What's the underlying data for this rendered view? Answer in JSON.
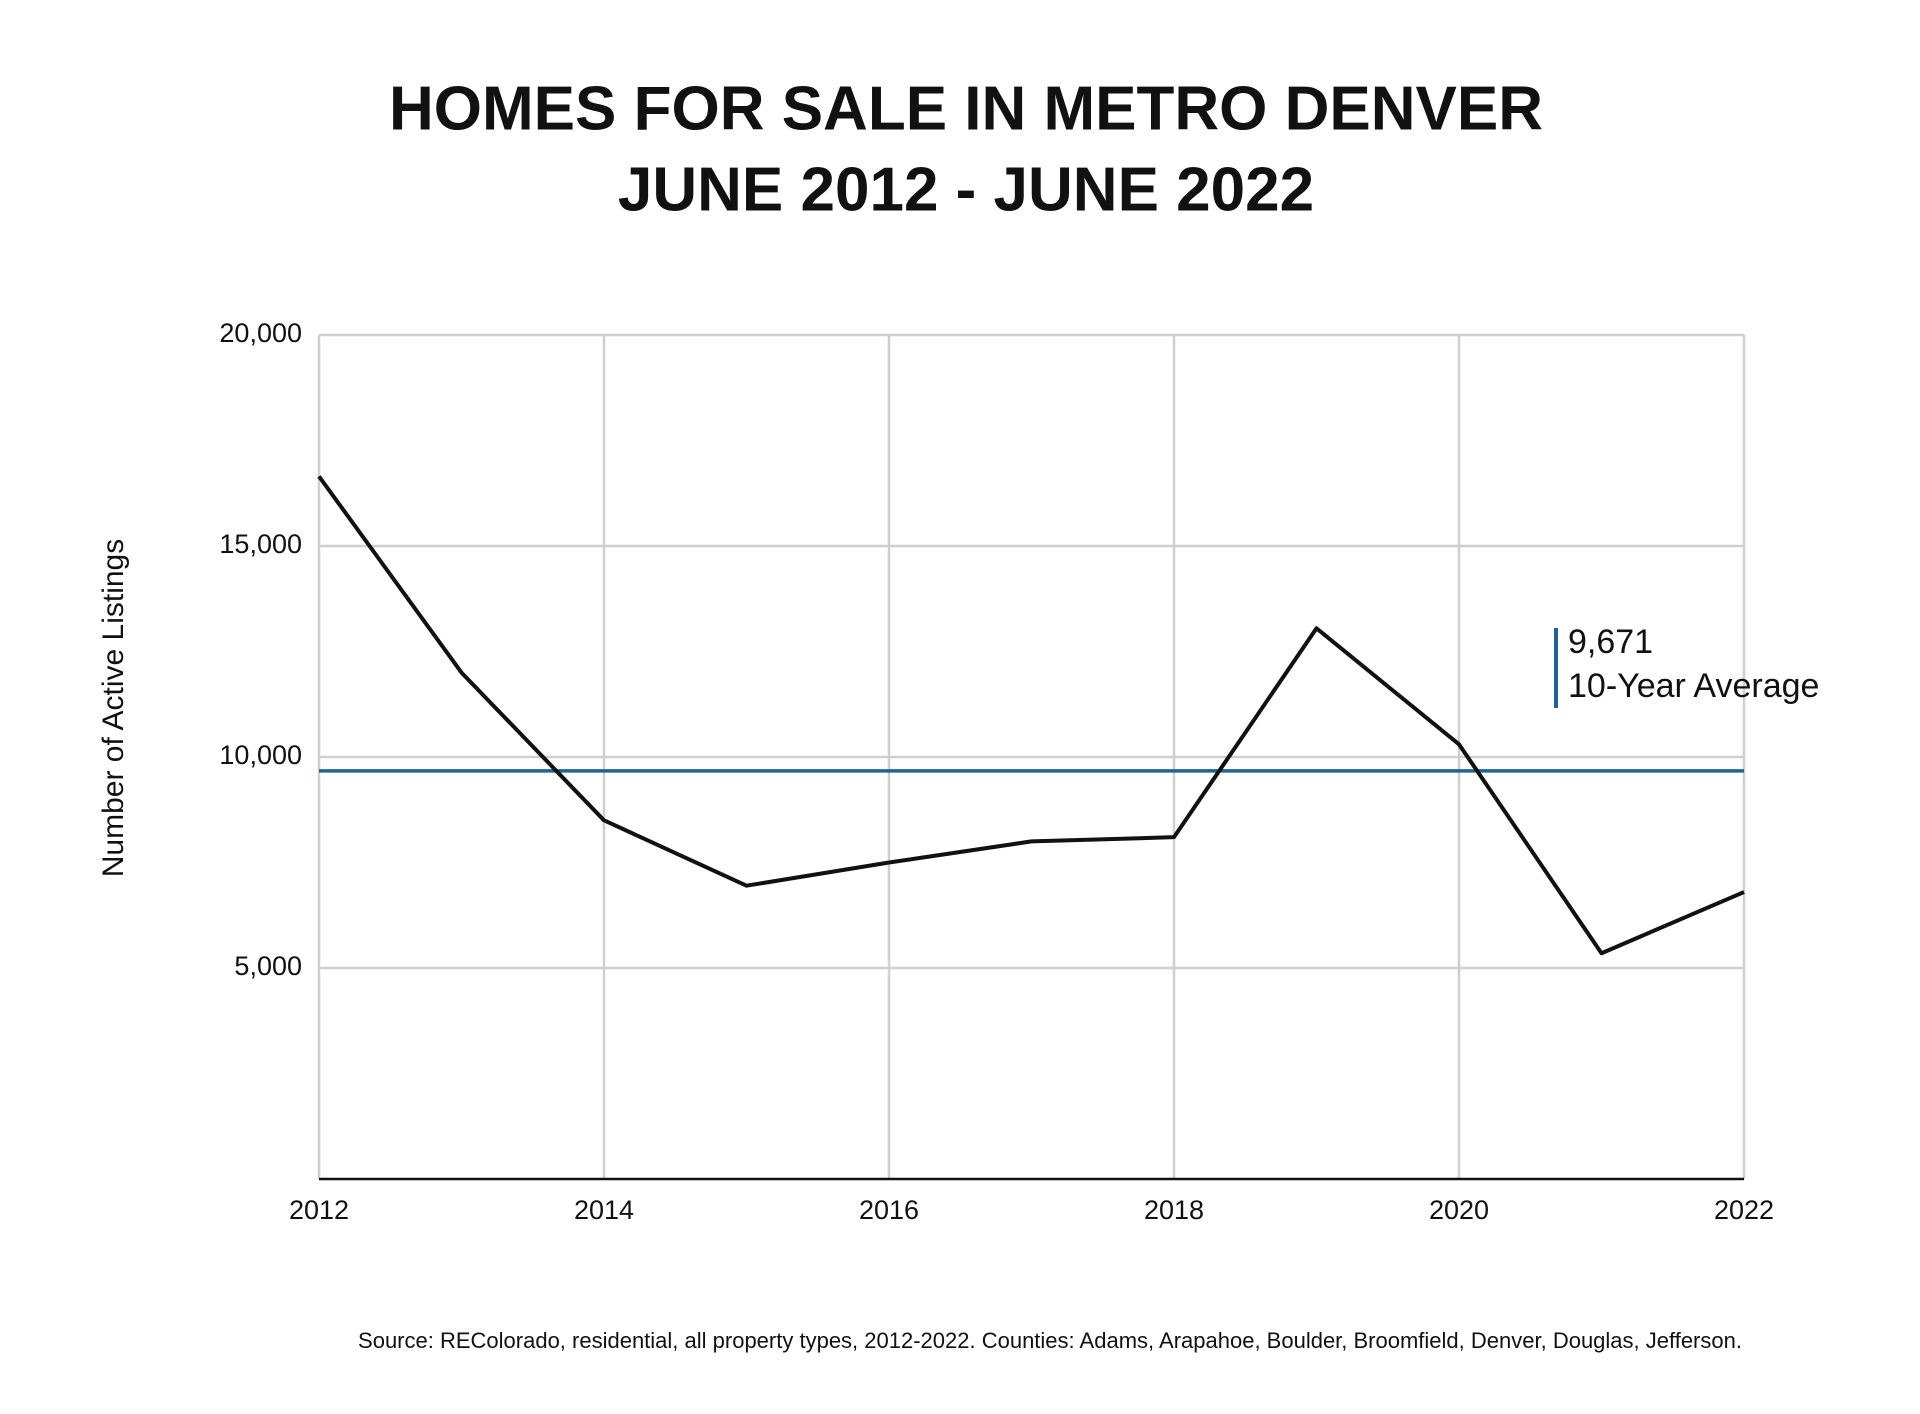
{
  "chart_data": {
    "type": "line",
    "title": "HOMES FOR SALE IN METRO DENVER",
    "subtitle": "JUNE 2012 - JUNE 2022",
    "y_label": "Number of Active Listings",
    "source": "Source: REColorado, residential, all property types, 2012-2022. Counties: Adams, Arapahoe, Boulder, Broomfield, Denver, Douglas, Jefferson.",
    "x": [
      2012,
      2013,
      2014,
      2015,
      2016,
      2017,
      2018,
      2019,
      2020,
      2021,
      2022
    ],
    "values": [
      16650,
      12000,
      8500,
      6950,
      7500,
      8000,
      8100,
      13050,
      10300,
      5350,
      6800
    ],
    "color": "#111111",
    "xlim": [
      2012,
      2022
    ],
    "xticks": [
      2012,
      2014,
      2016,
      2018,
      2020,
      2022
    ],
    "ylim": [
      0,
      20000
    ],
    "yticks": [
      {
        "value": 5000,
        "label": "5,000"
      },
      {
        "value": 10000,
        "label": "10,000"
      },
      {
        "value": 15000,
        "label": "15,000"
      },
      {
        "value": 20000,
        "label": "20,000"
      }
    ],
    "grid": true,
    "average": {
      "value": 9671,
      "label": "9,671",
      "text": "10-Year Average",
      "color": "#1e6496"
    }
  }
}
